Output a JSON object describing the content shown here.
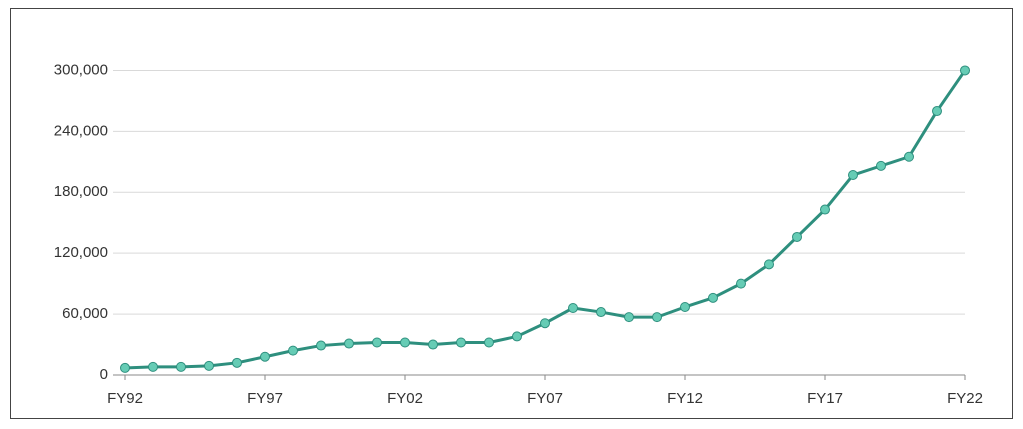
{
  "chart_data": {
    "type": "line",
    "categories": [
      "FY92",
      null,
      null,
      null,
      null,
      "FY97",
      null,
      null,
      null,
      null,
      "FY02",
      null,
      null,
      null,
      null,
      "FY07",
      null,
      null,
      null,
      null,
      "FY12",
      null,
      null,
      null,
      null,
      "FY17",
      null,
      null,
      null,
      null,
      "FY22"
    ],
    "series": [
      {
        "color": "#2e8f7e",
        "marker_color": "#66ccb5",
        "values": [
          7000,
          8000,
          8000,
          9000,
          12000,
          18000,
          24000,
          29000,
          31000,
          32000,
          32000,
          30000,
          32000,
          32000,
          38000,
          51000,
          66000,
          62000,
          57000,
          57000,
          67000,
          76000,
          90000,
          109000,
          136000,
          163000,
          197000,
          206000,
          215000,
          260000,
          300000
        ]
      }
    ],
    "ylim": [
      0,
      330000
    ],
    "yticks": [
      0,
      {
        "value": 60000,
        "label": "60,000"
      },
      {
        "value": 120000,
        "label": "120,000"
      },
      {
        "value": 180000,
        "label": "180,000"
      },
      {
        "value": 240000,
        "label": "240,000"
      },
      {
        "value": 300000,
        "label": "300,000"
      }
    ],
    "grid": true
  }
}
